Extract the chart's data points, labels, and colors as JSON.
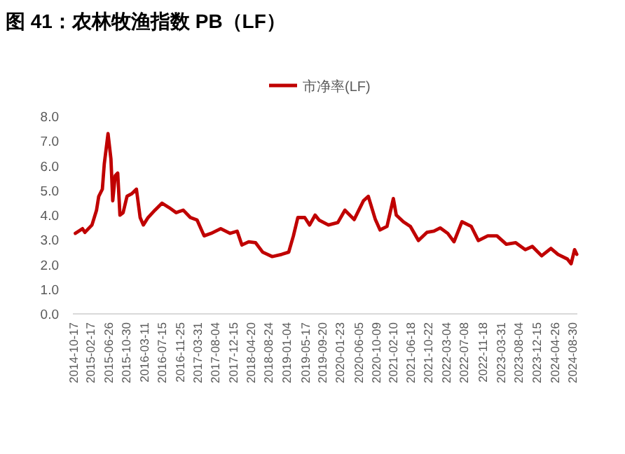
{
  "chart_data": {
    "type": "line",
    "title": "图 41：农林牧渔指数 PB（LF）",
    "legend": "top",
    "x": [
      "2014-10-30",
      "2014-12-20",
      "2015-01-07",
      "2015-02-27",
      "2015-04-01",
      "2015-04-17",
      "2015-05-13",
      "2015-05-27",
      "2015-06-23",
      "2015-07-14",
      "2015-07-27",
      "2015-08-14",
      "2015-09-01",
      "2015-09-17",
      "2015-10-10",
      "2015-11-07",
      "2015-12-10",
      "2016-01-14",
      "2016-02-10",
      "2016-03-04",
      "2016-04-07",
      "2016-05-27",
      "2016-07-17",
      "2016-09-07",
      "2016-10-27",
      "2016-12-17",
      "2017-02-07",
      "2017-03-27",
      "2017-05-17",
      "2017-07-07",
      "2017-09-14",
      "2017-11-21",
      "2018-01-11",
      "2018-02-14",
      "2018-04-04",
      "2018-05-24",
      "2018-07-14",
      "2018-09-21",
      "2018-11-28",
      "2019-01-18",
      "2019-02-21",
      "2019-03-25",
      "2019-05-14",
      "2019-06-18",
      "2019-07-28",
      "2019-08-25",
      "2019-11-01",
      "2020-01-08",
      "2020-02-28",
      "2020-05-05",
      "2020-07-11",
      "2020-08-15",
      "2020-10-05",
      "2020-11-08",
      "2020-12-28",
      "2021-02-12",
      "2021-03-05",
      "2021-04-25",
      "2021-06-15",
      "2021-08-12",
      "2021-10-12",
      "2021-12-02",
      "2022-01-16",
      "2022-03-12",
      "2022-04-26",
      "2022-06-22",
      "2022-08-29",
      "2022-10-19",
      "2022-12-26",
      "2023-03-02",
      "2023-05-09",
      "2023-07-16",
      "2023-09-23",
      "2023-11-13",
      "2024-01-19",
      "2024-03-26",
      "2024-05-16",
      "2024-07-23",
      "2024-08-19",
      "2024-09-13",
      "2024-09-29"
    ],
    "series": [
      {
        "name": "市净率(LF)",
        "color": "#c00000",
        "values": [
          3.26,
          3.45,
          3.3,
          3.6,
          4.2,
          4.76,
          5.05,
          6.08,
          7.3,
          6.27,
          4.58,
          5.6,
          5.7,
          4.0,
          4.1,
          4.76,
          4.86,
          5.05,
          3.9,
          3.6,
          3.9,
          4.2,
          4.48,
          4.3,
          4.1,
          4.2,
          3.9,
          3.8,
          3.16,
          3.26,
          3.45,
          3.26,
          3.35,
          2.79,
          2.92,
          2.88,
          2.5,
          2.32,
          2.41,
          2.5,
          3.16,
          3.9,
          3.9,
          3.6,
          4.0,
          3.8,
          3.6,
          3.7,
          4.2,
          3.82,
          4.58,
          4.76,
          3.82,
          3.4,
          3.54,
          4.67,
          4.0,
          3.73,
          3.54,
          2.97,
          3.3,
          3.35,
          3.48,
          3.26,
          2.92,
          3.73,
          3.54,
          2.97,
          3.16,
          3.16,
          2.82,
          2.88,
          2.6,
          2.73,
          2.35,
          2.65,
          2.41,
          2.22,
          2.03,
          2.6,
          2.41
        ]
      }
    ],
    "xlim": [
      "2014-10-12",
      "2024-10-03"
    ],
    "xticks": [
      "2014-10-17",
      "2015-02-17",
      "2015-06-26",
      "2015-10-30",
      "2016-03-11",
      "2016-07-15",
      "2016-11-25",
      "2017-03-31",
      "2017-08-04",
      "2017-12-15",
      "2018-04-20",
      "2018-08-24",
      "2019-01-04",
      "2019-05-17",
      "2019-09-20",
      "2020-01-23",
      "2020-06-05",
      "2020-10-09",
      "2021-02-10",
      "2021-06-18",
      "2021-10-22",
      "2022-03-04",
      "2022-07-08",
      "2022-11-18",
      "2023-03-31",
      "2023-08-04",
      "2023-12-15",
      "2024-04-26",
      "2024-08-30"
    ],
    "ylim": [
      0,
      8
    ],
    "yticks": [
      {
        "value": 0,
        "label": "0.0"
      },
      {
        "value": 1,
        "label": "1.0"
      },
      {
        "value": 2,
        "label": "2.0"
      },
      {
        "value": 3,
        "label": "3.0"
      },
      {
        "value": 4,
        "label": "4.0"
      },
      {
        "value": 5,
        "label": "5.0"
      },
      {
        "value": 6,
        "label": "6.0"
      },
      {
        "value": 7,
        "label": "7.0"
      },
      {
        "value": 8,
        "label": "8.0"
      }
    ],
    "line_style": "solid",
    "marker": "none",
    "grid": false
  }
}
